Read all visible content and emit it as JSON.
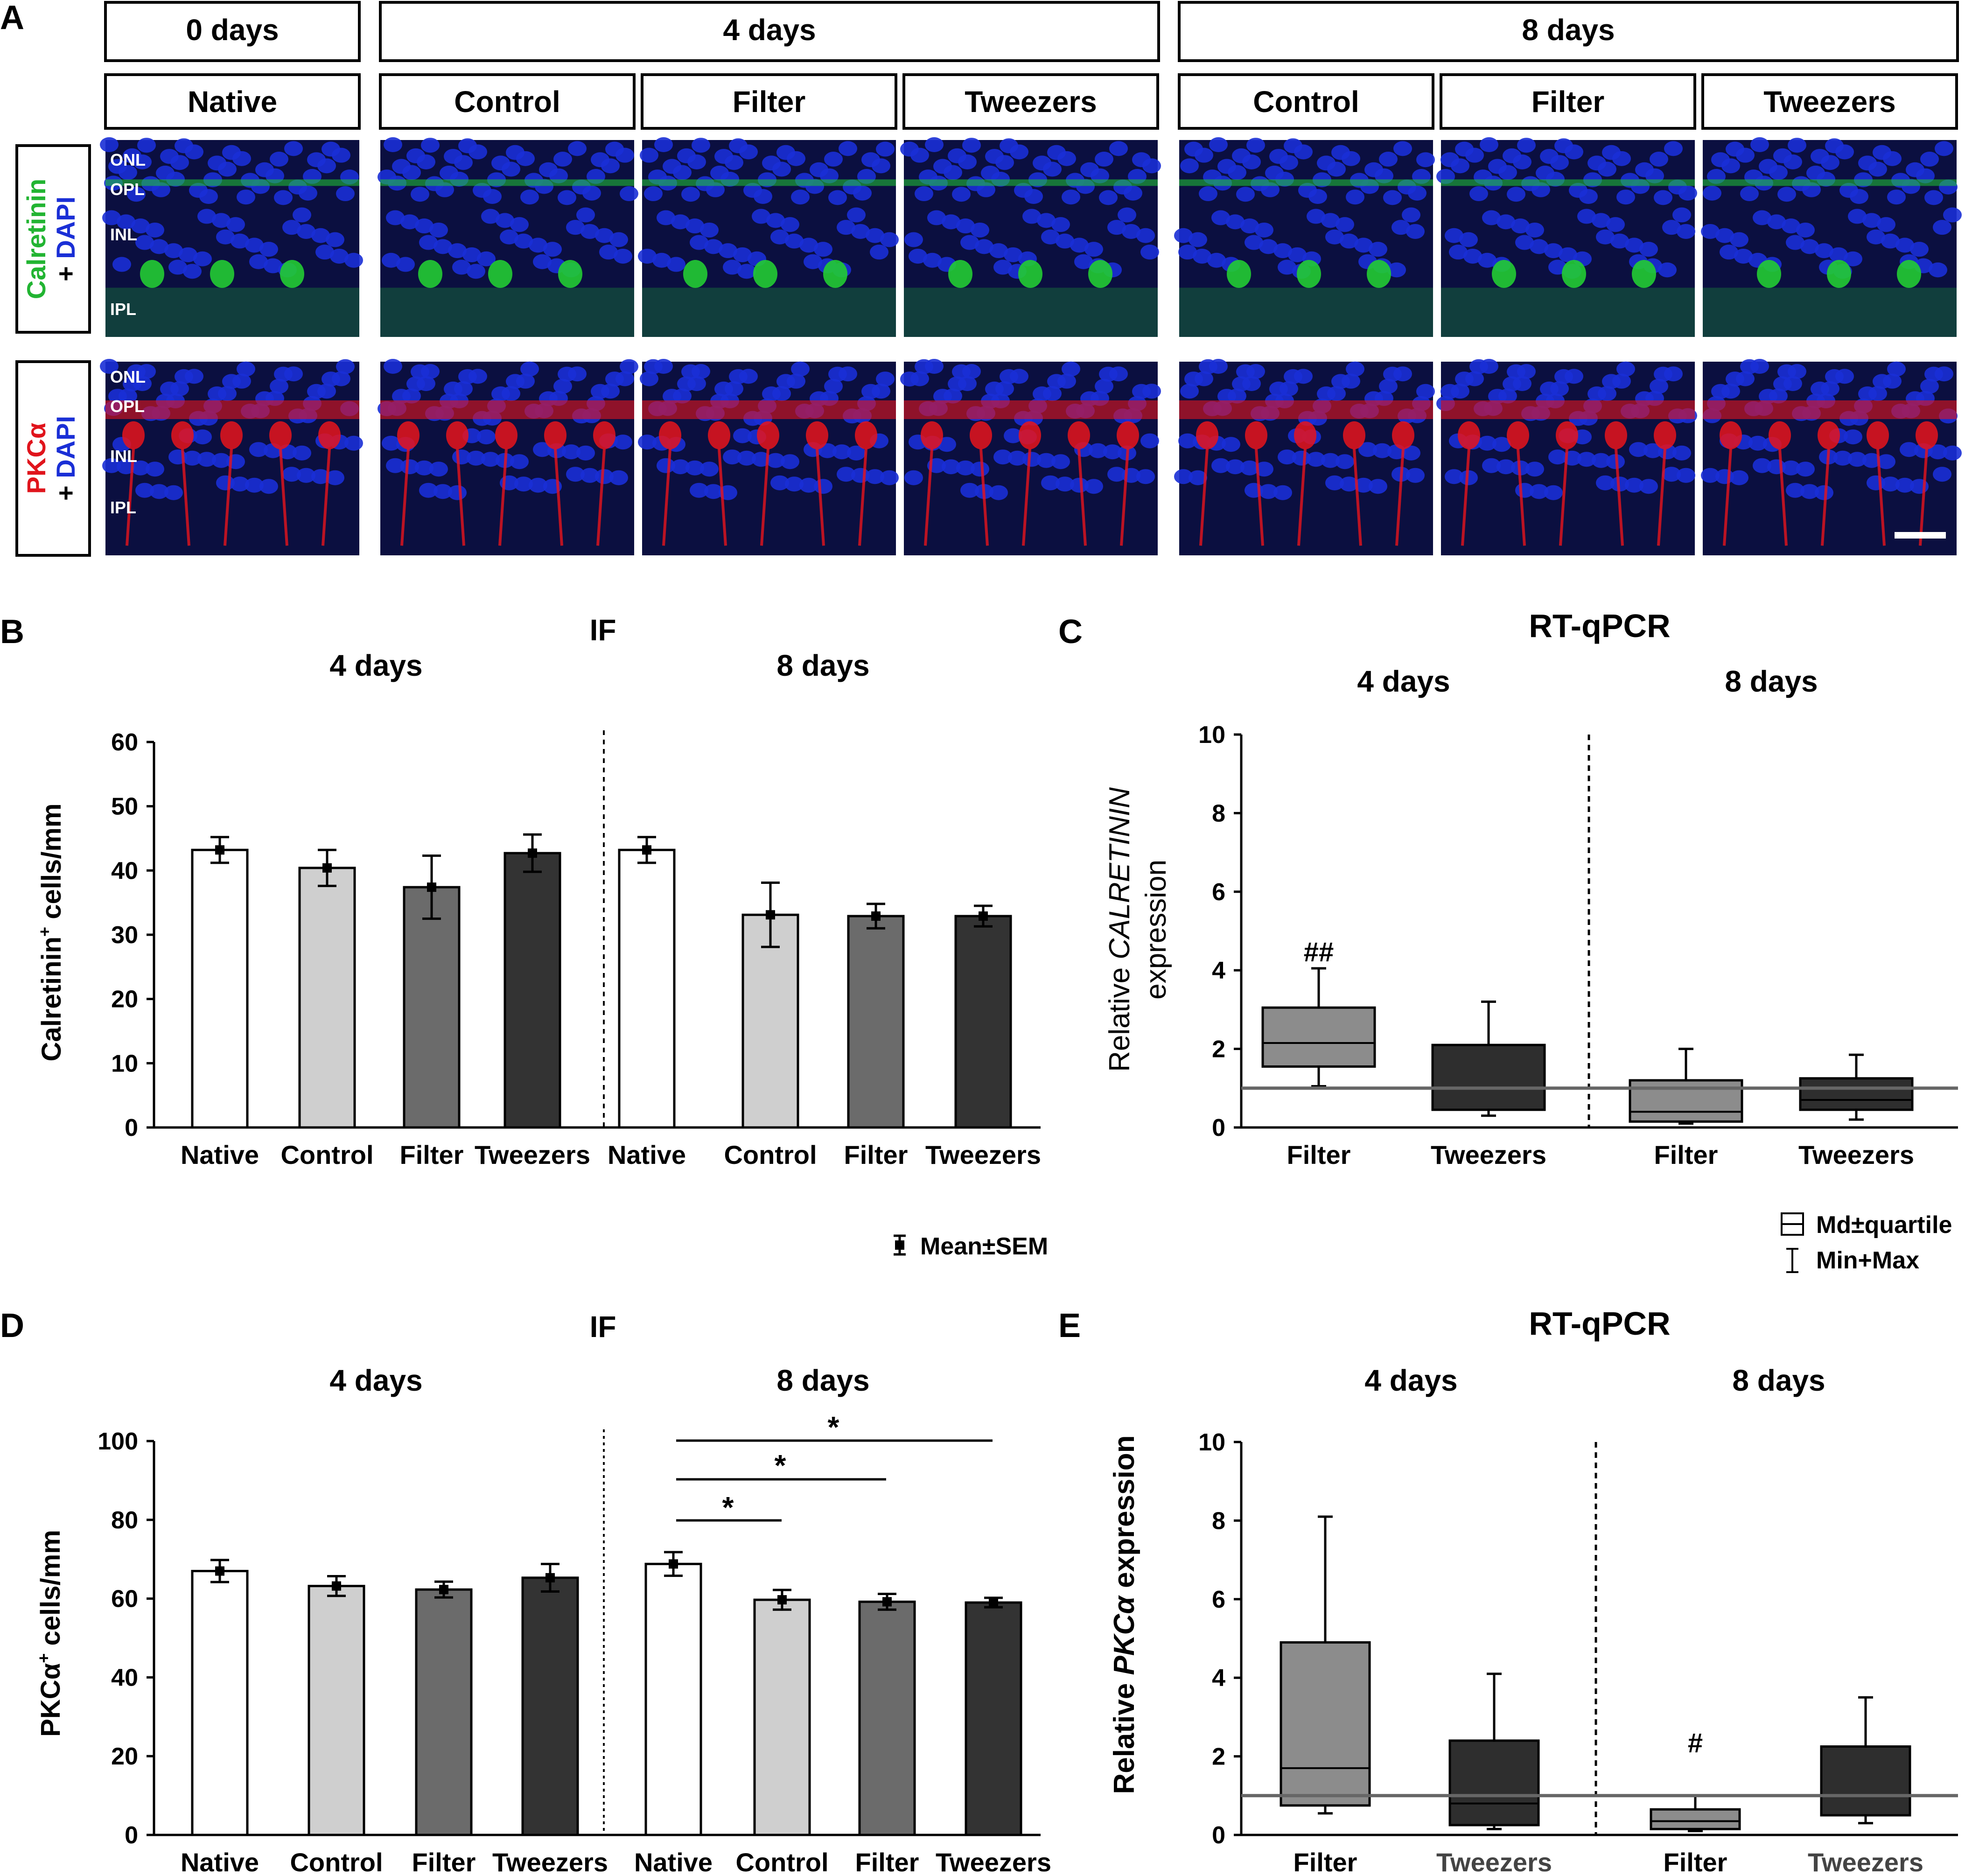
{
  "panel_letters": {
    "A": "A",
    "B": "B",
    "C": "C",
    "D": "D",
    "E": "E"
  },
  "panelA": {
    "time_headers": [
      "0 days",
      "4 days",
      "8 days"
    ],
    "condition_headers": [
      "Native",
      "Control",
      "Filter",
      "Tweezers",
      "Control",
      "Filter",
      "Tweezers"
    ],
    "row1_label": {
      "line1_part1": "Calretinin",
      "line2": "+ DAPI"
    },
    "row2_label": {
      "line1_part1": "PKCα",
      "line2": "+ DAPI"
    },
    "row1_layers": [
      "ONL",
      "OPL",
      "INL",
      "IPL"
    ],
    "row2_layers": [
      "ONL",
      "OPL",
      "INL",
      "IPL"
    ],
    "colors": {
      "dapi": "#1a2fd6",
      "calretinin": "#22cc33",
      "pkc": "#e8141c"
    }
  },
  "panelB": {
    "section_label": "IF",
    "group_titles": [
      "4 days",
      "8 days"
    ],
    "ylabel_main": "Calretinin",
    "ylabel_sup": "+",
    "ylabel_rest": " cells/mm",
    "legend": "Mean±SEM"
  },
  "panelC": {
    "section_label": "RT-qPCR",
    "group_titles": [
      "4 days",
      "8 days"
    ],
    "ylabel_line1_a": "Relative ",
    "ylabel_line1_b": "CALRETININ",
    "ylabel_line2": "expression",
    "legend_box": "Md±quartile",
    "legend_whisker": "Min+Max",
    "annotation": "##"
  },
  "panelD": {
    "section_label": "IF",
    "group_titles": [
      "4 days",
      "8 days"
    ],
    "ylabel_main": "PKCα",
    "ylabel_sup": "+",
    "ylabel_rest": " cells/mm",
    "sig_marks": [
      "*",
      "*",
      "*"
    ]
  },
  "panelE": {
    "section_label": "RT-qPCR",
    "group_titles": [
      "4 days",
      "8 days"
    ],
    "ylabel_a": "Relative ",
    "ylabel_b": "PKCα",
    "ylabel_c": " expression",
    "annotation": "#"
  },
  "chart_data": [
    {
      "id": "B",
      "type": "bar",
      "categories": [
        "Native",
        "Control",
        "Filter",
        "Tweezers",
        "Native",
        "Control",
        "Filter",
        "Tweezers"
      ],
      "values": [
        43.2,
        40.4,
        37.4,
        42.7,
        43.2,
        33.1,
        32.9,
        32.9
      ],
      "errors": [
        2.0,
        2.8,
        4.9,
        2.9,
        2.0,
        5.0,
        1.9,
        1.6
      ],
      "groups": [
        "4 days",
        "4 days",
        "4 days",
        "4 days",
        "8 days",
        "8 days",
        "8 days",
        "8 days"
      ],
      "colors": [
        "#ffffff",
        "#cfcfcf",
        "#6b6b6b",
        "#333333",
        "#ffffff",
        "#cfcfcf",
        "#6b6b6b",
        "#333333"
      ],
      "ylim": [
        0,
        60
      ],
      "yticks": [
        0,
        10,
        20,
        30,
        40,
        50,
        60
      ],
      "ylabel": "Calretinin+ cells/mm"
    },
    {
      "id": "C",
      "type": "box",
      "categories": [
        "Filter",
        "Tweezers",
        "Filter",
        "Tweezers"
      ],
      "groups": [
        "4 days",
        "4 days",
        "8 days",
        "8 days"
      ],
      "colors": [
        "#8c8c8c",
        "#2e2e2e",
        "#8c8c8c",
        "#2e2e2e"
      ],
      "min": [
        1.05,
        0.3,
        0.1,
        0.2
      ],
      "q1": [
        1.55,
        0.45,
        0.15,
        0.45
      ],
      "median": [
        2.15,
        1.0,
        0.4,
        0.7
      ],
      "q3": [
        3.05,
        2.1,
        1.2,
        1.25
      ],
      "max": [
        4.05,
        3.2,
        2.0,
        1.85
      ],
      "reference_line": 1,
      "ylim": [
        0,
        10
      ],
      "yticks": [
        0,
        2,
        4,
        6,
        8,
        10
      ],
      "ylabel": "Relative CALRETININ expression"
    },
    {
      "id": "D",
      "type": "bar",
      "categories": [
        "Native",
        "Control",
        "Filter",
        "Tweezers",
        "Native",
        "Control",
        "Filter",
        "Tweezers"
      ],
      "values": [
        67.0,
        63.2,
        62.3,
        65.3,
        68.8,
        59.7,
        59.2,
        59.0
      ],
      "errors": [
        2.8,
        2.5,
        2.0,
        3.5,
        3.0,
        2.5,
        2.0,
        1.2
      ],
      "groups": [
        "4 days",
        "4 days",
        "4 days",
        "4 days",
        "8 days",
        "8 days",
        "8 days",
        "8 days"
      ],
      "colors": [
        "#ffffff",
        "#cfcfcf",
        "#6b6b6b",
        "#333333",
        "#ffffff",
        "#cfcfcf",
        "#6b6b6b",
        "#333333"
      ],
      "ylim": [
        0,
        100
      ],
      "yticks": [
        0,
        20,
        40,
        60,
        80,
        100
      ],
      "ylabel": "PKCα+ cells/mm",
      "significance": [
        {
          "from": "Native",
          "to": "Control",
          "group": "8 days",
          "label": "*"
        },
        {
          "from": "Native",
          "to": "Filter",
          "group": "8 days",
          "label": "*"
        },
        {
          "from": "Native",
          "to": "Tweezers",
          "group": "8 days",
          "label": "*"
        }
      ]
    },
    {
      "id": "E",
      "type": "box",
      "categories": [
        "Filter",
        "Tweezers",
        "Filter",
        "Tweezers"
      ],
      "groups": [
        "4 days",
        "4 days",
        "8 days",
        "8 days"
      ],
      "colors": [
        "#8c8c8c",
        "#2e2e2e",
        "#8c8c8c",
        "#2e2e2e"
      ],
      "min": [
        0.55,
        0.15,
        0.1,
        0.3
      ],
      "q1": [
        0.75,
        0.25,
        0.15,
        0.5
      ],
      "median": [
        1.7,
        0.8,
        0.35,
        1.0
      ],
      "q3": [
        4.9,
        2.4,
        0.65,
        2.25
      ],
      "max": [
        8.1,
        4.1,
        1.0,
        3.5
      ],
      "reference_line": 1,
      "ylim": [
        0,
        10
      ],
      "yticks": [
        0,
        2,
        4,
        6,
        8,
        10
      ],
      "ylabel": "Relative PKCα expression"
    }
  ]
}
